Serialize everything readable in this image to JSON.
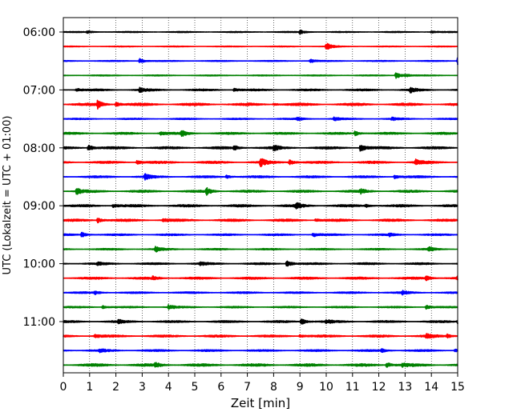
{
  "chart_data": {
    "type": "line",
    "title": "",
    "xlabel": "Zeit  [min]",
    "ylabel": "UTC (Lokalzeit = UTC + 01:00)",
    "xlim": [
      0,
      15
    ],
    "x_ticks": [
      "0",
      "1",
      "2",
      "3",
      "4",
      "5",
      "6",
      "7",
      "8",
      "9",
      "10",
      "11",
      "12",
      "13",
      "14",
      "15"
    ],
    "y_ticks": [
      {
        "label": "06:00",
        "row": 0
      },
      {
        "label": "07:00",
        "row": 4
      },
      {
        "label": "08:00",
        "row": 8
      },
      {
        "label": "09:00",
        "row": 12
      },
      {
        "label": "10:00",
        "row": 16
      },
      {
        "label": "11:00",
        "row": 20
      }
    ],
    "grid": "vertical dotted",
    "row_minutes": 15,
    "color_cycle": [
      "#000000",
      "#ff0000",
      "#0000ff",
      "#008000"
    ],
    "series": [
      {
        "start": "06:00",
        "noise": 0.6,
        "events": [
          [
            0.9,
            1.5
          ],
          [
            9.0,
            2.5
          ],
          [
            14.0,
            1.2
          ]
        ]
      },
      {
        "start": "06:15",
        "noise": 0.5,
        "events": [
          [
            10.0,
            5.0
          ]
        ]
      },
      {
        "start": "06:30",
        "noise": 0.6,
        "events": [
          [
            2.9,
            3.0
          ],
          [
            9.4,
            2.0
          ],
          [
            15.0,
            6.0
          ]
        ]
      },
      {
        "start": "06:45",
        "noise": 0.6,
        "events": [
          [
            12.65,
            4.5
          ],
          [
            13.0,
            1.6
          ]
        ]
      },
      {
        "start": "07:00",
        "noise": 1.1,
        "events": [
          [
            0.5,
            2.0
          ],
          [
            2.9,
            3.0
          ],
          [
            6.5,
            2.0
          ],
          [
            13.2,
            3.0
          ]
        ]
      },
      {
        "start": "07:15",
        "noise": 1.5,
        "events": [
          [
            1.3,
            5.0
          ],
          [
            2.0,
            3.0
          ],
          [
            8.0,
            1.5
          ]
        ]
      },
      {
        "start": "07:30",
        "noise": 0.8,
        "events": [
          [
            8.9,
            2.0
          ],
          [
            10.3,
            2.5
          ],
          [
            12.5,
            2.0
          ]
        ]
      },
      {
        "start": "07:45",
        "noise": 1.2,
        "events": [
          [
            3.7,
            2.0
          ],
          [
            4.5,
            3.5
          ],
          [
            11.1,
            3.0
          ]
        ]
      },
      {
        "start": "08:00",
        "noise": 1.4,
        "events": [
          [
            0.95,
            4.0
          ],
          [
            6.5,
            2.5
          ],
          [
            8.0,
            3.0
          ],
          [
            11.3,
            5.0
          ]
        ]
      },
      {
        "start": "08:15",
        "noise": 1.4,
        "events": [
          [
            2.8,
            2.5
          ],
          [
            7.5,
            5.0
          ],
          [
            8.6,
            3.5
          ],
          [
            13.4,
            3.5
          ]
        ]
      },
      {
        "start": "08:30",
        "noise": 1.2,
        "events": [
          [
            3.1,
            3.5
          ],
          [
            6.2,
            2.0
          ],
          [
            12.6,
            2.5
          ]
        ]
      },
      {
        "start": "08:45",
        "noise": 1.3,
        "events": [
          [
            0.5,
            4.0
          ],
          [
            5.45,
            4.5
          ],
          [
            11.3,
            3.0
          ]
        ]
      },
      {
        "start": "09:00",
        "noise": 1.4,
        "events": [
          [
            1.9,
            2.5
          ],
          [
            8.85,
            4.0
          ],
          [
            11.5,
            2.0
          ]
        ]
      },
      {
        "start": "09:15",
        "noise": 1.4,
        "events": [
          [
            1.3,
            3.5
          ],
          [
            3.8,
            2.0
          ],
          [
            9.6,
            2.0
          ]
        ]
      },
      {
        "start": "09:30",
        "noise": 1.0,
        "events": [
          [
            0.7,
            3.0
          ],
          [
            9.5,
            2.5
          ],
          [
            12.4,
            2.0
          ]
        ]
      },
      {
        "start": "09:45",
        "noise": 0.9,
        "events": [
          [
            3.5,
            3.5
          ],
          [
            13.9,
            2.5
          ]
        ]
      },
      {
        "start": "10:00",
        "noise": 1.1,
        "events": [
          [
            8.5,
            4.5
          ],
          [
            5.2,
            2.0
          ],
          [
            1.3,
            1.5
          ]
        ]
      },
      {
        "start": "10:15",
        "noise": 1.3,
        "events": [
          [
            3.4,
            2.0
          ],
          [
            13.8,
            3.0
          ],
          [
            15.0,
            2.5
          ]
        ]
      },
      {
        "start": "10:30",
        "noise": 1.0,
        "events": [
          [
            1.2,
            2.0
          ],
          [
            12.9,
            2.0
          ]
        ]
      },
      {
        "start": "10:45",
        "noise": 0.9,
        "events": [
          [
            1.5,
            2.0
          ],
          [
            4.0,
            3.0
          ],
          [
            13.8,
            2.5
          ]
        ]
      },
      {
        "start": "11:00",
        "noise": 1.2,
        "events": [
          [
            2.1,
            2.0
          ],
          [
            9.05,
            4.0
          ],
          [
            10.0,
            2.0
          ],
          [
            15.0,
            3.0
          ]
        ]
      },
      {
        "start": "11:15",
        "noise": 1.3,
        "events": [
          [
            1.2,
            2.0
          ],
          [
            9.0,
            2.0
          ],
          [
            13.8,
            3.0
          ],
          [
            14.6,
            2.5
          ]
        ]
      },
      {
        "start": "11:30",
        "noise": 1.1,
        "events": [
          [
            1.4,
            2.0
          ],
          [
            12.1,
            2.5
          ],
          [
            14.9,
            2.0
          ]
        ]
      },
      {
        "start": "11:45",
        "noise": 1.6,
        "events": [
          [
            3.5,
            3.0
          ],
          [
            12.3,
            3.5
          ],
          [
            12.9,
            2.0
          ]
        ]
      }
    ]
  }
}
